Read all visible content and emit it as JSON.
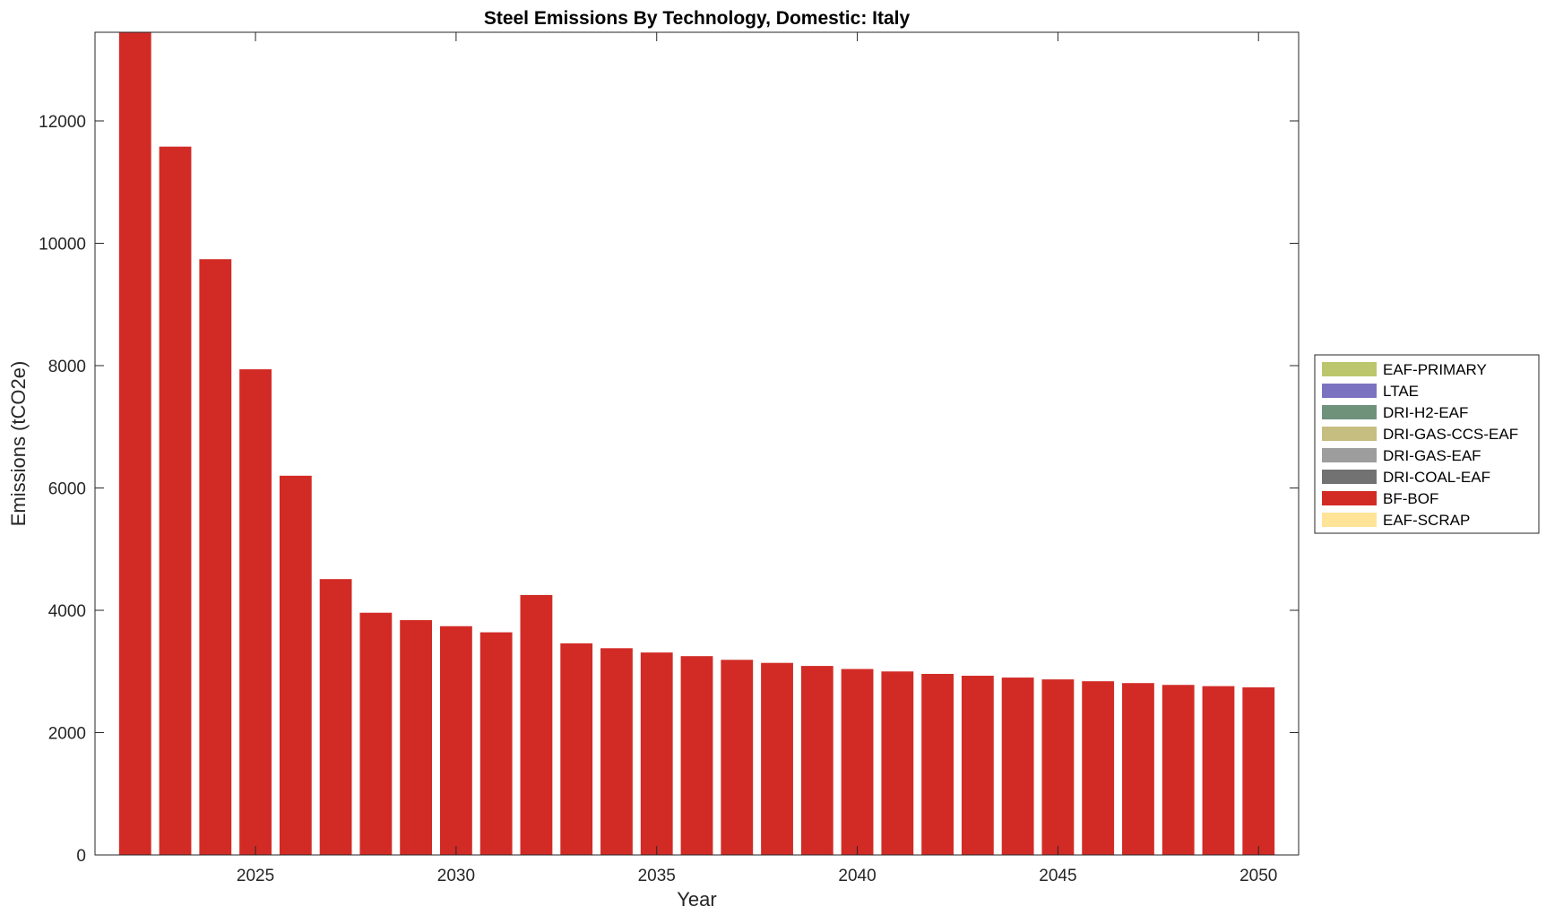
{
  "chart_data": {
    "type": "bar",
    "stacked": true,
    "title": "Steel Emissions By Technology, Domestic: Italy",
    "xlabel": "Year",
    "ylabel": "Emissions (tCO2e)",
    "xlim": [
      2021,
      2051
    ],
    "ylim": [
      0,
      13450
    ],
    "x_ticks": [
      2025,
      2030,
      2035,
      2040,
      2045,
      2050
    ],
    "y_ticks": [
      0,
      2000,
      4000,
      6000,
      8000,
      10000,
      12000
    ],
    "grid": false,
    "legend_position": "right",
    "categories": [
      2022,
      2023,
      2024,
      2025,
      2026,
      2027,
      2028,
      2029,
      2030,
      2031,
      2032,
      2033,
      2034,
      2035,
      2036,
      2037,
      2038,
      2039,
      2040,
      2041,
      2042,
      2043,
      2044,
      2045,
      2046,
      2047,
      2048,
      2049,
      2050
    ],
    "series": [
      {
        "name": "EAF-PRIMARY",
        "color": "#bcc66c",
        "values": [
          0,
          0,
          0,
          0,
          0,
          0,
          0,
          0,
          0,
          0,
          0,
          0,
          0,
          0,
          0,
          0,
          0,
          0,
          0,
          0,
          0,
          0,
          0,
          0,
          0,
          0,
          0,
          0,
          0
        ]
      },
      {
        "name": "LTAE",
        "color": "#7b73c0",
        "values": [
          0,
          0,
          0,
          0,
          0,
          0,
          0,
          0,
          0,
          0,
          0,
          0,
          0,
          0,
          0,
          0,
          0,
          0,
          0,
          0,
          0,
          0,
          0,
          0,
          0,
          0,
          0,
          0,
          0
        ]
      },
      {
        "name": "DRI-H2-EAF",
        "color": "#6f927a",
        "values": [
          0,
          0,
          0,
          0,
          0,
          0,
          0,
          0,
          0,
          0,
          0,
          0,
          0,
          0,
          0,
          0,
          0,
          0,
          0,
          0,
          0,
          0,
          0,
          0,
          0,
          0,
          0,
          0,
          0
        ]
      },
      {
        "name": "DRI-GAS-CCS-EAF",
        "color": "#c6bd80",
        "values": [
          0,
          0,
          0,
          0,
          0,
          0,
          0,
          0,
          0,
          0,
          0,
          0,
          0,
          0,
          0,
          0,
          0,
          0,
          0,
          0,
          0,
          0,
          0,
          0,
          0,
          0,
          0,
          0,
          0
        ]
      },
      {
        "name": "DRI-GAS-EAF",
        "color": "#9d9d9d",
        "values": [
          0,
          0,
          0,
          0,
          0,
          0,
          0,
          0,
          0,
          0,
          0,
          0,
          0,
          0,
          0,
          0,
          0,
          0,
          0,
          0,
          0,
          0,
          0,
          0,
          0,
          0,
          0,
          0,
          0
        ]
      },
      {
        "name": "DRI-COAL-EAF",
        "color": "#727272",
        "values": [
          0,
          0,
          0,
          0,
          0,
          0,
          0,
          0,
          0,
          0,
          0,
          0,
          0,
          0,
          0,
          0,
          0,
          0,
          0,
          0,
          0,
          0,
          0,
          0,
          0,
          0,
          0,
          0,
          0
        ]
      },
      {
        "name": "BF-BOF",
        "color": "#d22b26",
        "values": [
          13450,
          11580,
          9740,
          7940,
          6200,
          4510,
          3960,
          3840,
          3740,
          3640,
          4250,
          3460,
          3380,
          3310,
          3250,
          3190,
          3140,
          3090,
          3040,
          3000,
          2960,
          2930,
          2900,
          2870,
          2840,
          2810,
          2780,
          2760,
          2740
        ]
      },
      {
        "name": "EAF-SCRAP",
        "color": "#ffe396",
        "values": [
          0,
          0,
          0,
          0,
          0,
          0,
          0,
          0,
          0,
          0,
          0,
          0,
          0,
          0,
          0,
          0,
          0,
          0,
          0,
          0,
          0,
          0,
          0,
          0,
          0,
          0,
          0,
          0,
          0
        ]
      }
    ]
  }
}
